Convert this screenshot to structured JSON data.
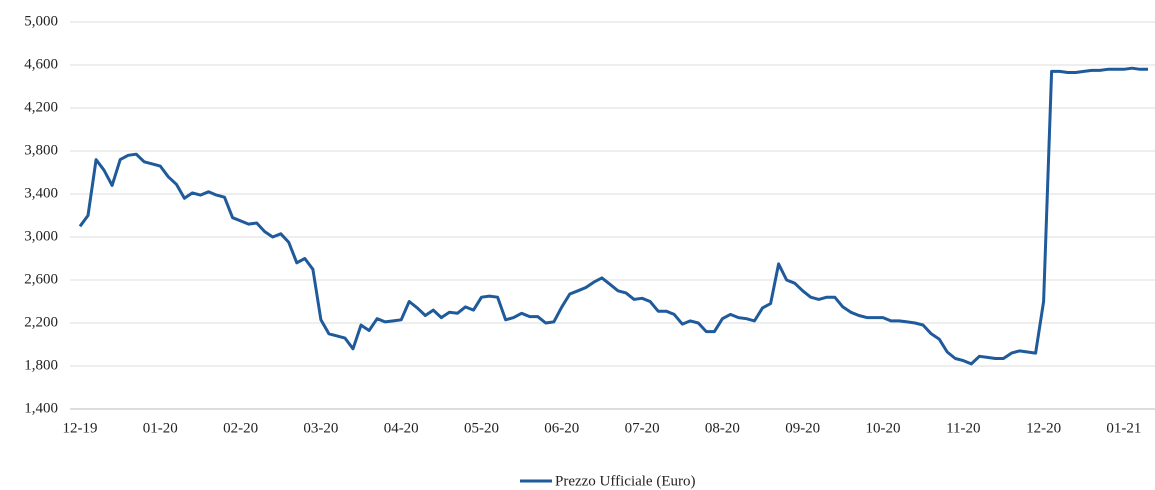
{
  "chart_data": {
    "type": "line",
    "categories": [
      "12-19",
      null,
      null,
      null,
      null,
      null,
      null,
      null,
      null,
      null,
      "01-20",
      null,
      null,
      null,
      null,
      null,
      null,
      null,
      null,
      null,
      "02-20",
      null,
      null,
      null,
      null,
      null,
      null,
      null,
      null,
      null,
      "03-20",
      null,
      null,
      null,
      null,
      null,
      null,
      null,
      null,
      null,
      "04-20",
      null,
      null,
      null,
      null,
      null,
      null,
      null,
      null,
      null,
      "05-20",
      null,
      null,
      null,
      null,
      null,
      null,
      null,
      null,
      null,
      "06-20",
      null,
      null,
      null,
      null,
      null,
      null,
      null,
      null,
      null,
      "07-20",
      null,
      null,
      null,
      null,
      null,
      null,
      null,
      null,
      null,
      "08-20",
      null,
      null,
      null,
      null,
      null,
      null,
      null,
      null,
      null,
      "09-20",
      null,
      null,
      null,
      null,
      null,
      null,
      null,
      null,
      null,
      "10-20",
      null,
      null,
      null,
      null,
      null,
      null,
      null,
      null,
      null,
      "11-20",
      null,
      null,
      null,
      null,
      null,
      null,
      null,
      null,
      null,
      "12-20",
      null,
      null,
      null,
      null,
      null,
      null,
      null,
      null,
      null,
      "01-21",
      null,
      null,
      null
    ],
    "series": [
      {
        "name": "Prezzo Ufficiale (Euro)",
        "color": "#1f5a9a",
        "values": [
          3100,
          3200,
          3720,
          3620,
          3480,
          3720,
          3760,
          3770,
          3700,
          3680,
          3660,
          3560,
          3490,
          3360,
          3410,
          3390,
          3420,
          3390,
          3370,
          3180,
          3150,
          3120,
          3130,
          3050,
          3000,
          3030,
          2950,
          2760,
          2800,
          2700,
          2230,
          2100,
          2080,
          2060,
          1960,
          2180,
          2130,
          2240,
          2210,
          2220,
          2230,
          2400,
          2340,
          2270,
          2320,
          2250,
          2300,
          2290,
          2350,
          2320,
          2440,
          2450,
          2440,
          2230,
          2250,
          2290,
          2260,
          2260,
          2200,
          2210,
          2350,
          2470,
          2500,
          2530,
          2580,
          2620,
          2560,
          2500,
          2480,
          2420,
          2430,
          2400,
          2310,
          2310,
          2280,
          2190,
          2220,
          2200,
          2120,
          2120,
          2240,
          2280,
          2250,
          2240,
          2220,
          2340,
          2380,
          2750,
          2600,
          2570,
          2500,
          2440,
          2420,
          2440,
          2440,
          2350,
          2300,
          2270,
          2250,
          2250,
          2250,
          2220,
          2220,
          2210,
          2200,
          2180,
          2100,
          2050,
          1930,
          1870,
          1850,
          1820,
          1890,
          1880,
          1870,
          1870,
          1920,
          1940,
          1930,
          1920,
          2400,
          4540,
          4540,
          4530,
          4530,
          4540,
          4550,
          4550,
          4560,
          4560,
          4560,
          4570,
          4560,
          4560
        ]
      }
    ],
    "ylim": [
      1400,
      5000
    ],
    "yticks": [
      {
        "value": 1400,
        "label": "1,400"
      },
      {
        "value": 1800,
        "label": "1,800"
      },
      {
        "value": 2200,
        "label": "2,200"
      },
      {
        "value": 2600,
        "label": "2,600"
      },
      {
        "value": 3000,
        "label": "3,000"
      },
      {
        "value": 3400,
        "label": "3,400"
      },
      {
        "value": 3800,
        "label": "3,800"
      },
      {
        "value": 4200,
        "label": "4,200"
      },
      {
        "value": 4600,
        "label": "4,600"
      },
      {
        "value": 5000,
        "label": "5,000"
      }
    ],
    "grid": true,
    "legend": "bottom"
  }
}
